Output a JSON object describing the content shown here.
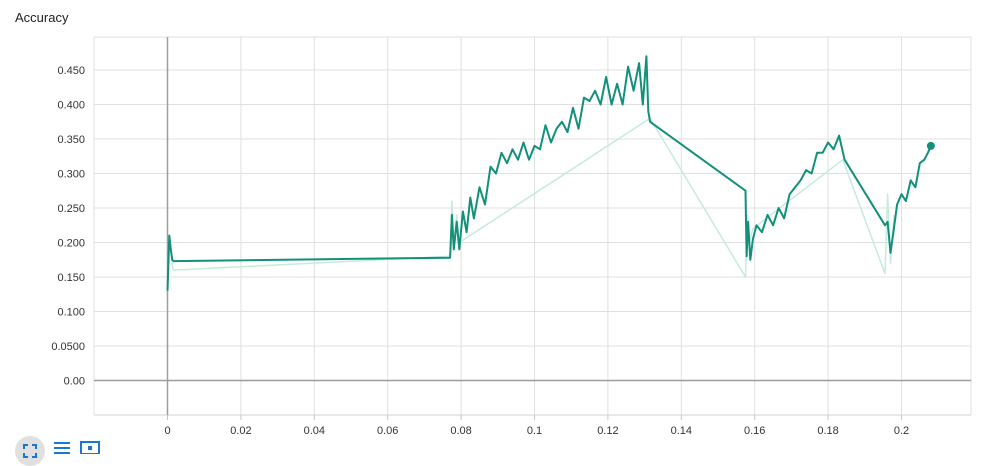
{
  "card": {
    "title": "Accuracy"
  },
  "chart_data": {
    "type": "line",
    "title": "Accuracy",
    "xlabel": "",
    "ylabel": "",
    "xlim": [
      -0.02,
      0.2
    ],
    "ylim": [
      -0.05,
      0.5
    ],
    "x_ticks": [
      0,
      0.02,
      0.04,
      0.06,
      0.08,
      0.1,
      0.12,
      0.14,
      0.16,
      0.18,
      0.2
    ],
    "x_tick_labels": [
      "0",
      "0.02",
      "0.04",
      "0.06",
      "0.08",
      "0.1",
      "0.12",
      "0.14",
      "0.16",
      "0.18",
      "0.2"
    ],
    "y_ticks": [
      0,
      0.05,
      0.1,
      0.15,
      0.2,
      0.25,
      0.3,
      0.35,
      0.4,
      0.45
    ],
    "y_tick_labels": [
      "0.00",
      "0.0500",
      "0.100",
      "0.150",
      "0.200",
      "0.250",
      "0.300",
      "0.350",
      "0.400",
      "0.450"
    ],
    "grid": true,
    "series": [
      {
        "role": "smoothed",
        "color": "#12907a",
        "x": [
          0.0,
          0.0005,
          0.0009,
          0.0013,
          0.0017,
          0.077,
          0.0775,
          0.078,
          0.0788,
          0.0795,
          0.0805,
          0.0815,
          0.0825,
          0.0835,
          0.085,
          0.0865,
          0.088,
          0.0895,
          0.091,
          0.0925,
          0.094,
          0.0955,
          0.097,
          0.0985,
          0.1,
          0.1015,
          0.103,
          0.1045,
          0.106,
          0.1075,
          0.109,
          0.1105,
          0.112,
          0.1135,
          0.115,
          0.1165,
          0.118,
          0.1195,
          0.121,
          0.1225,
          0.124,
          0.1255,
          0.127,
          0.1285,
          0.1295,
          0.1305,
          0.131,
          0.1315,
          0.1575,
          0.1578,
          0.1582,
          0.1588,
          0.1595,
          0.1605,
          0.162,
          0.1635,
          0.165,
          0.1665,
          0.168,
          0.1695,
          0.171,
          0.1725,
          0.174,
          0.1755,
          0.177,
          0.1785,
          0.18,
          0.1815,
          0.183,
          0.1845,
          0.1955,
          0.1962,
          0.197,
          0.1978,
          0.1988,
          0.2,
          0.2012,
          0.2025,
          0.2038,
          0.205,
          0.2062,
          0.2072,
          0.208
        ],
        "y": [
          0.13,
          0.21,
          0.19,
          0.175,
          0.173,
          0.178,
          0.24,
          0.19,
          0.23,
          0.19,
          0.245,
          0.215,
          0.265,
          0.235,
          0.28,
          0.255,
          0.31,
          0.3,
          0.33,
          0.315,
          0.335,
          0.32,
          0.345,
          0.32,
          0.34,
          0.335,
          0.37,
          0.345,
          0.365,
          0.375,
          0.36,
          0.395,
          0.365,
          0.41,
          0.405,
          0.42,
          0.4,
          0.44,
          0.4,
          0.43,
          0.4,
          0.455,
          0.42,
          0.46,
          0.4,
          0.47,
          0.39,
          0.375,
          0.275,
          0.18,
          0.23,
          0.175,
          0.205,
          0.225,
          0.215,
          0.24,
          0.225,
          0.25,
          0.235,
          0.27,
          0.28,
          0.29,
          0.305,
          0.3,
          0.33,
          0.33,
          0.345,
          0.335,
          0.355,
          0.32,
          0.225,
          0.23,
          0.185,
          0.215,
          0.255,
          0.27,
          0.26,
          0.29,
          0.28,
          0.315,
          0.32,
          0.33,
          0.34
        ]
      },
      {
        "role": "raw",
        "color": "#c5ebde",
        "x": [
          0.0,
          0.0005,
          0.0009,
          0.0013,
          0.0017,
          0.077,
          0.0775,
          0.078,
          0.0788,
          0.0795,
          0.1315,
          0.1575,
          0.158,
          0.1585,
          0.1595,
          0.184,
          0.1955,
          0.1962,
          0.197,
          0.1975,
          0.198
        ],
        "y": [
          0.13,
          0.2,
          0.19,
          0.165,
          0.16,
          0.18,
          0.26,
          0.2,
          0.24,
          0.2,
          0.38,
          0.15,
          0.24,
          0.2,
          0.22,
          0.32,
          0.155,
          0.27,
          0.17,
          0.21,
          0.24
        ]
      }
    ]
  },
  "toolbar": {
    "icons": [
      "fit-to-data-icon",
      "toggle-log-scale-icon",
      "download-icon"
    ]
  }
}
